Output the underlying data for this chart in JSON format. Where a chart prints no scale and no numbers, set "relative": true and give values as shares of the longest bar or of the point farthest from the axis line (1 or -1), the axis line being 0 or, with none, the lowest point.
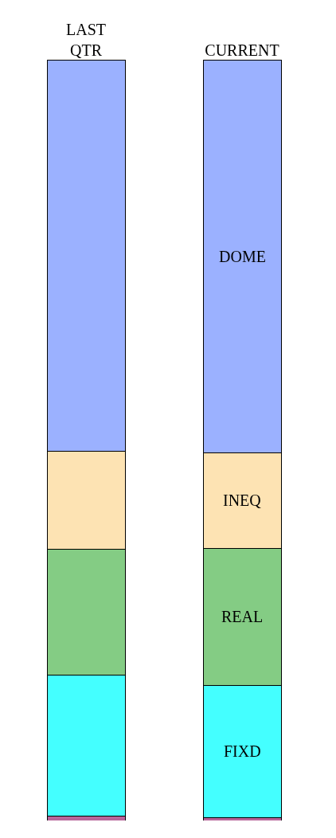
{
  "chart_data": {
    "type": "bar",
    "stacked": true,
    "relative": true,
    "legend": false,
    "categories": [
      "LAST QTR",
      "CURRENT"
    ],
    "series": [
      {
        "color": "#b8649a",
        "values": [
          0.006,
          0.004
        ]
      },
      {
        "name": "FIXD",
        "color": "#44ffff",
        "values": [
          0.185,
          0.174
        ]
      },
      {
        "name": "REAL",
        "color": "#84cc84",
        "values": [
          0.166,
          0.18
        ]
      },
      {
        "name": "INEQ",
        "color": "#fde3b3",
        "values": [
          0.128,
          0.125
        ]
      },
      {
        "name": "DOME",
        "color": "#9bb1ff",
        "values": [
          0.515,
          0.517
        ]
      }
    ]
  }
}
